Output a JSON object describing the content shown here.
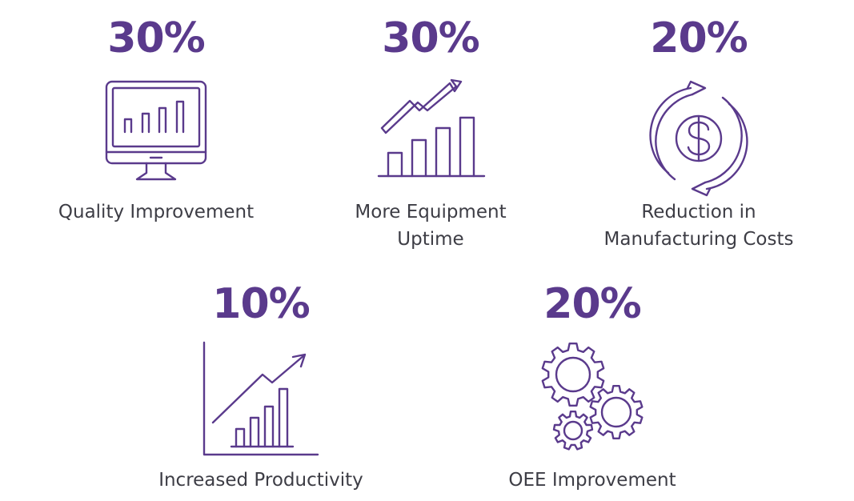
{
  "colors": {
    "accent": "#5a3a8c",
    "label": "#3d3d45",
    "background": "#ffffff"
  },
  "stats": [
    {
      "value": "30%",
      "label_lines": [
        "Quality Improvement"
      ],
      "icon": "monitor-bar-chart-icon"
    },
    {
      "value": "30%",
      "label_lines": [
        "More Equipment",
        "Uptime"
      ],
      "icon": "rising-bar-chart-arrow-icon"
    },
    {
      "value": "20%",
      "label_lines": [
        "Reduction in",
        "Manufacturing Costs"
      ],
      "icon": "dollar-cycle-arrows-icon"
    },
    {
      "value": "10%",
      "label_lines": [
        "Increased Productivity"
      ],
      "icon": "growth-chart-axes-icon"
    },
    {
      "value": "20%",
      "label_lines": [
        "OEE Improvement"
      ],
      "icon": "gears-icon"
    }
  ]
}
